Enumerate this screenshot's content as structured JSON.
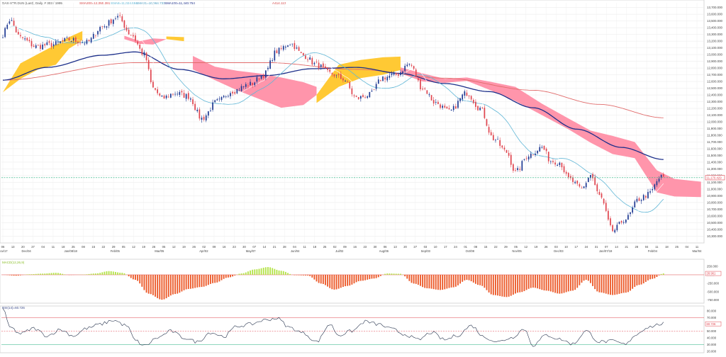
{
  "header": {
    "symbol": "DAX-XTR.DUN (Last), Daily, # 303 / 1995",
    "sma200": "SMA200=12,055.391",
    "sma8": "SMA8=11,024.584",
    "sma21": "SMA21=10,964.732",
    "sma100": "SMA100=11,440.754",
    "extra": "A414.112"
  },
  "price_axis": {
    "ticks": [
      13700,
      13600,
      13500,
      13400,
      13300,
      13200,
      13100,
      13000,
      12900,
      12800,
      12700,
      12600,
      12500,
      12400,
      12300,
      12200,
      12100,
      12000,
      11900,
      11800,
      11700,
      11600,
      11500,
      11400,
      11300,
      11200,
      11100,
      11000,
      10900,
      10800,
      10700,
      10600,
      10500,
      10400,
      10300
    ],
    "tick_labels": [
      "13,700.000",
      "13,600.000",
      "13,500.000",
      "13,400.000",
      "13,300.000",
      "13,200.000",
      "13,100.000",
      "13,000.000",
      "12,900.000",
      "12,800.000",
      "12,700.000",
      "12,600.000",
      "12,500.000",
      "12,400.000",
      "12,300.000",
      "12,200.000",
      "12,100.000",
      "12,000.000",
      "11,900.000",
      "11,800.000",
      "11,700.000",
      "11,600.000",
      "11,500.000",
      "11,400.000",
      "11,300.000",
      "11,200.000",
      "11,100.000",
      "11,000.000",
      "10,900.000",
      "10,800.000",
      "10,700.000",
      "10,600.000",
      "10,500.000",
      "10,400.000",
      "10,300.000"
    ],
    "ylim": [
      10230,
      13770
    ],
    "current_label": "11,170.429",
    "current_value": 11170
  },
  "time_axis": {
    "day_labels": [
      "06",
      "13",
      "20",
      "27",
      "04",
      "11",
      "18",
      "25",
      "08",
      "15",
      "22",
      "29",
      "05",
      "12",
      "19",
      "26",
      "05",
      "12",
      "19",
      "26",
      "02",
      "09",
      "16",
      "23",
      "30",
      "07",
      "14",
      "21",
      "28",
      "04",
      "11",
      "18",
      "25",
      "02",
      "09",
      "16",
      "23",
      "30",
      "06",
      "13",
      "20",
      "27",
      "03",
      "10",
      "17",
      "24",
      "01",
      "08",
      "15",
      "22",
      "29",
      "05",
      "12",
      "19",
      "26",
      "03",
      "10",
      "17",
      "24",
      "31",
      "07",
      "14",
      "21",
      "28",
      "04",
      "11",
      "18",
      "25",
      "04",
      "11"
    ],
    "month_labels": [
      "Nov/17",
      "Dec/04",
      "Jan/08/18",
      "Feb/05",
      "Mar/05",
      "Apr/02",
      "May/07",
      "Jun/04",
      "Jul/02",
      "Aug/06",
      "Sep/03",
      "Oct/08",
      "Nov/05",
      "Dec/03",
      "Jan/07/19",
      "Feb/04",
      "Mar/04"
    ],
    "month_positions": [
      0,
      9,
      26,
      43,
      60,
      77,
      95,
      112,
      129,
      146,
      162,
      179,
      197,
      213,
      231,
      249,
      266
    ]
  },
  "colors": {
    "candle_up": "#1f3a93",
    "candle_down": "#e0454f",
    "cloud_bull": "#ffc629",
    "cloud_bear": "#ff8fa6",
    "sma100": "#1c2f8a",
    "sma200": "#e06a6a",
    "sma21": "#5fb6d6",
    "sma8": "#7fcfe0",
    "macd_pos": "#b5e34a",
    "macd_neg": "#ec5a2a",
    "rsi": "#27344e",
    "grid": "#e8e8e8",
    "hline": "#22b07d"
  },
  "macd_panel": {
    "label": "MACD(12,26,9)",
    "tick_labels": [
      "250.000",
      "0.000",
      "-250.000",
      "-500.000",
      "-750.000"
    ],
    "ticks": [
      250,
      0,
      -250,
      -500,
      -750
    ],
    "ylim": [
      -800,
      420
    ],
    "current_label": "28.961"
  },
  "rsi_panel": {
    "label": "RSI(14)=60.726",
    "tick_labels": [
      "80.000",
      "70.000",
      "60.000",
      "50.000",
      "40.000",
      "30.000",
      "20.000"
    ],
    "ticks": [
      80,
      70,
      60,
      50,
      40,
      30,
      20
    ],
    "ylim": [
      20,
      85
    ],
    "levels": [
      70,
      50,
      30
    ],
    "current_label": "60.726"
  },
  "chart_data": {
    "type": "candlestick",
    "title": "DAX-XTR.DUN (Last), Daily",
    "n_bars": 300,
    "anchors": [
      [
        0,
        13300
      ],
      [
        3,
        13520
      ],
      [
        8,
        13250
      ],
      [
        15,
        13120
      ],
      [
        22,
        13150
      ],
      [
        30,
        13220
      ],
      [
        38,
        13180
      ],
      [
        45,
        13420
      ],
      [
        52,
        13560
      ],
      [
        58,
        13300
      ],
      [
        64,
        13000
      ],
      [
        68,
        12500
      ],
      [
        72,
        12350
      ],
      [
        78,
        12430
      ],
      [
        84,
        12380
      ],
      [
        90,
        12050
      ],
      [
        97,
        12300
      ],
      [
        104,
        12460
      ],
      [
        112,
        12560
      ],
      [
        118,
        12700
      ],
      [
        124,
        13050
      ],
      [
        130,
        13170
      ],
      [
        136,
        12990
      ],
      [
        142,
        12850
      ],
      [
        148,
        12720
      ],
      [
        154,
        12640
      ],
      [
        160,
        12350
      ],
      [
        166,
        12400
      ],
      [
        172,
        12660
      ],
      [
        178,
        12700
      ],
      [
        184,
        12860
      ],
      [
        190,
        12500
      ],
      [
        196,
        12280
      ],
      [
        202,
        12150
      ],
      [
        210,
        12430
      ],
      [
        216,
        12200
      ],
      [
        222,
        11750
      ],
      [
        228,
        11550
      ],
      [
        232,
        11250
      ],
      [
        238,
        11510
      ],
      [
        244,
        11620
      ],
      [
        248,
        11420
      ],
      [
        252,
        11400
      ],
      [
        256,
        11150
      ],
      [
        262,
        11000
      ],
      [
        266,
        11210
      ],
      [
        270,
        10900
      ],
      [
        276,
        10380
      ],
      [
        282,
        10560
      ],
      [
        288,
        10850
      ],
      [
        292,
        10920
      ],
      [
        298,
        11180
      ]
    ],
    "sma200_anchors": [
      [
        0,
        12620
      ],
      [
        60,
        12880
      ],
      [
        120,
        12880
      ],
      [
        160,
        12780
      ],
      [
        200,
        12650
      ],
      [
        240,
        12470
      ],
      [
        270,
        12260
      ],
      [
        299,
        12060
      ]
    ],
    "sma100_anchors": [
      [
        0,
        12620
      ],
      [
        20,
        12810
      ],
      [
        45,
        12990
      ],
      [
        60,
        13040
      ],
      [
        80,
        12780
      ],
      [
        100,
        12640
      ],
      [
        120,
        12690
      ],
      [
        140,
        12790
      ],
      [
        160,
        12810
      ],
      [
        180,
        12720
      ],
      [
        200,
        12570
      ],
      [
        220,
        12450
      ],
      [
        240,
        12210
      ],
      [
        260,
        11890
      ],
      [
        280,
        11620
      ],
      [
        299,
        11440
      ]
    ],
    "cloud": [
      {
        "kind": "bull",
        "points": [
          [
            0,
            12440
          ],
          [
            8,
            12870
          ],
          [
            16,
            13010
          ],
          [
            24,
            13150
          ],
          [
            30,
            13260
          ],
          [
            36,
            13350
          ]
        ],
        "lower": [
          [
            0,
            12440
          ],
          [
            8,
            12640
          ],
          [
            16,
            12780
          ],
          [
            24,
            12850
          ],
          [
            30,
            13090
          ],
          [
            36,
            13210
          ]
        ]
      },
      {
        "kind": "bear",
        "points": [
          [
            55,
            13280
          ],
          [
            62,
            13200
          ],
          [
            68,
            13240
          ],
          [
            74,
            13230
          ]
        ],
        "lower": [
          [
            55,
            13230
          ],
          [
            62,
            13160
          ],
          [
            68,
            13150
          ],
          [
            74,
            13230
          ]
        ]
      },
      {
        "kind": "bull",
        "points": [
          [
            74,
            13270
          ],
          [
            82,
            13260
          ]
        ],
        "lower": [
          [
            74,
            13230
          ],
          [
            82,
            13200
          ]
        ]
      },
      {
        "kind": "bear",
        "points": [
          [
            86,
            12980
          ],
          [
            96,
            12820
          ],
          [
            106,
            12760
          ],
          [
            116,
            12720
          ],
          [
            126,
            12660
          ],
          [
            136,
            12590
          ],
          [
            142,
            12520
          ]
        ],
        "lower": [
          [
            86,
            12780
          ],
          [
            96,
            12620
          ],
          [
            106,
            12470
          ],
          [
            116,
            12340
          ],
          [
            126,
            12210
          ],
          [
            136,
            12250
          ],
          [
            142,
            12400
          ]
        ]
      },
      {
        "kind": "bull",
        "points": [
          [
            142,
            12400
          ],
          [
            152,
            12850
          ],
          [
            162,
            12920
          ],
          [
            172,
            12960
          ],
          [
            180,
            12970
          ]
        ],
        "lower": [
          [
            142,
            12280
          ],
          [
            152,
            12520
          ],
          [
            162,
            12650
          ],
          [
            172,
            12700
          ],
          [
            180,
            12770
          ]
        ]
      },
      {
        "kind": "bear",
        "points": [
          [
            180,
            12810
          ],
          [
            190,
            12720
          ],
          [
            200,
            12640
          ],
          [
            210,
            12660
          ],
          [
            220,
            12600
          ],
          [
            232,
            12520
          ],
          [
            244,
            12270
          ],
          [
            256,
            12050
          ],
          [
            266,
            11870
          ],
          [
            276,
            11790
          ],
          [
            286,
            11700
          ],
          [
            296,
            11280
          ],
          [
            304,
            11150
          ],
          [
            316,
            11110
          ]
        ],
        "lower": [
          [
            180,
            12720
          ],
          [
            190,
            12600
          ],
          [
            200,
            12580
          ],
          [
            210,
            12610
          ],
          [
            220,
            12480
          ],
          [
            232,
            12310
          ],
          [
            244,
            12100
          ],
          [
            256,
            11890
          ],
          [
            266,
            11690
          ],
          [
            276,
            11520
          ],
          [
            286,
            11460
          ],
          [
            296,
            10950
          ],
          [
            304,
            10890
          ],
          [
            316,
            10880
          ]
        ]
      }
    ],
    "macd_anchors": [
      [
        0,
        0
      ],
      [
        6,
        -25
      ],
      [
        12,
        15
      ],
      [
        18,
        35
      ],
      [
        24,
        60
      ],
      [
        30,
        -5
      ],
      [
        36,
        5
      ],
      [
        42,
        40
      ],
      [
        48,
        110
      ],
      [
        54,
        60
      ],
      [
        60,
        -150
      ],
      [
        66,
        -560
      ],
      [
        72,
        -740
      ],
      [
        78,
        -570
      ],
      [
        84,
        -420
      ],
      [
        90,
        -360
      ],
      [
        96,
        -240
      ],
      [
        102,
        -80
      ],
      [
        108,
        40
      ],
      [
        114,
        160
      ],
      [
        120,
        230
      ],
      [
        126,
        120
      ],
      [
        132,
        -10
      ],
      [
        138,
        -20
      ],
      [
        144,
        -260
      ],
      [
        150,
        -440
      ],
      [
        156,
        -330
      ],
      [
        162,
        -180
      ],
      [
        168,
        -110
      ],
      [
        174,
        40
      ],
      [
        180,
        30
      ],
      [
        186,
        -260
      ],
      [
        192,
        -400
      ],
      [
        198,
        -450
      ],
      [
        204,
        -370
      ],
      [
        210,
        -150
      ],
      [
        216,
        -310
      ],
      [
        222,
        -600
      ],
      [
        228,
        -660
      ],
      [
        234,
        -520
      ],
      [
        240,
        -380
      ],
      [
        246,
        -470
      ],
      [
        252,
        -560
      ],
      [
        258,
        -470
      ],
      [
        264,
        -150
      ],
      [
        270,
        -520
      ],
      [
        276,
        -600
      ],
      [
        282,
        -530
      ],
      [
        288,
        -300
      ],
      [
        294,
        -120
      ],
      [
        299,
        40
      ]
    ],
    "rsi_anchors": [
      [
        0,
        84
      ],
      [
        3,
        56
      ],
      [
        8,
        46
      ],
      [
        14,
        54
      ],
      [
        20,
        43
      ],
      [
        26,
        52
      ],
      [
        32,
        43
      ],
      [
        38,
        54
      ],
      [
        44,
        60
      ],
      [
        50,
        66
      ],
      [
        56,
        58
      ],
      [
        60,
        36
      ],
      [
        64,
        28
      ],
      [
        70,
        40
      ],
      [
        76,
        50
      ],
      [
        82,
        40
      ],
      [
        88,
        34
      ],
      [
        94,
        48
      ],
      [
        100,
        42
      ],
      [
        106,
        57
      ],
      [
        112,
        60
      ],
      [
        118,
        66
      ],
      [
        124,
        69
      ],
      [
        130,
        55
      ],
      [
        136,
        47
      ],
      [
        142,
        34
      ],
      [
        148,
        60
      ],
      [
        152,
        44
      ],
      [
        158,
        50
      ],
      [
        164,
        64
      ],
      [
        170,
        60
      ],
      [
        176,
        53
      ],
      [
        182,
        45
      ],
      [
        188,
        37
      ],
      [
        194,
        48
      ],
      [
        200,
        37
      ],
      [
        206,
        44
      ],
      [
        212,
        58
      ],
      [
        218,
        41
      ],
      [
        224,
        34
      ],
      [
        230,
        40
      ],
      [
        236,
        53
      ],
      [
        240,
        29
      ],
      [
        246,
        44
      ],
      [
        252,
        38
      ],
      [
        258,
        31
      ],
      [
        264,
        50
      ],
      [
        270,
        34
      ],
      [
        276,
        35
      ],
      [
        282,
        30
      ],
      [
        286,
        44
      ],
      [
        292,
        56
      ],
      [
        299,
        61
      ]
    ]
  }
}
